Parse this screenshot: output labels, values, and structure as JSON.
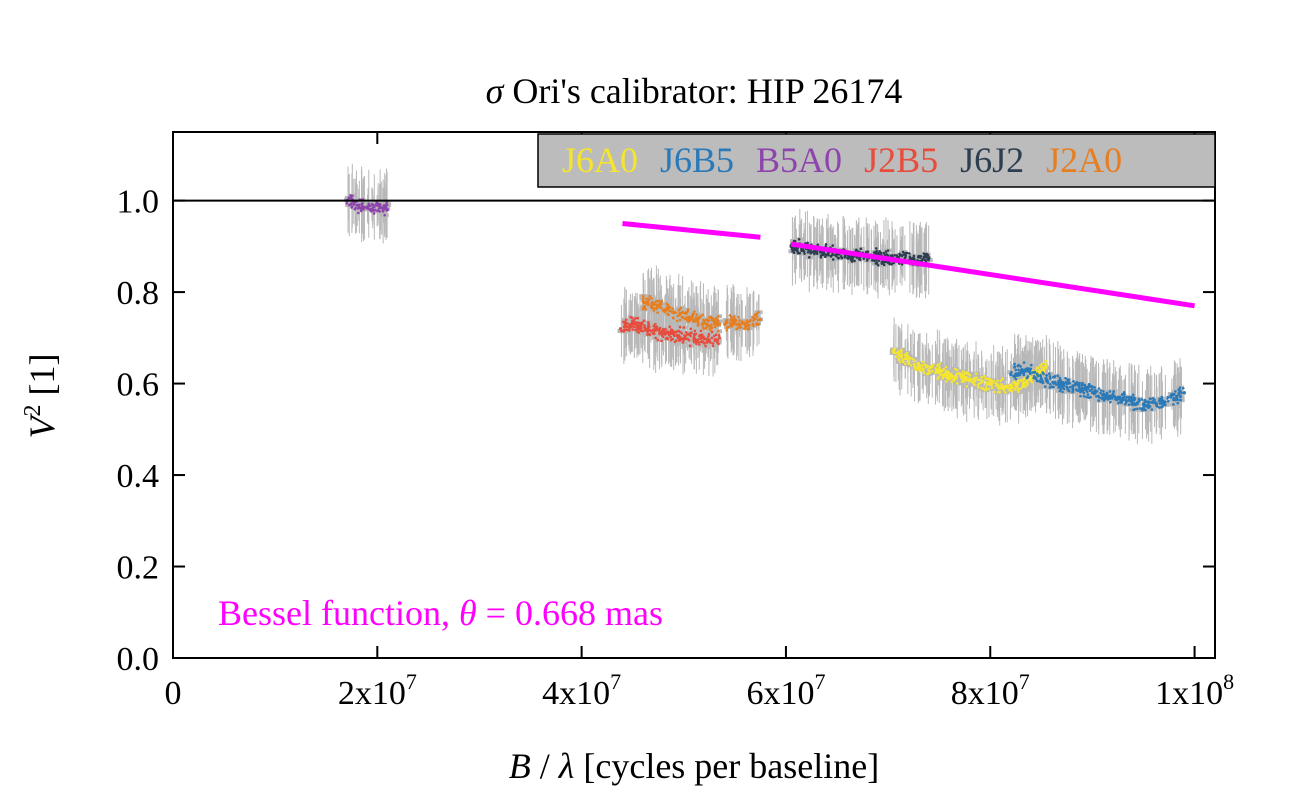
{
  "chart_data": {
    "type": "scatter",
    "title_prefix": "σ",
    "title_rest": " Ori's calibrator: HIP 26174",
    "xlabel_b": "B",
    "xlabel_slash": " / ",
    "xlabel_lambda": "λ",
    "xlabel_rest": " [cycles per baseline]",
    "ylabel_v": "V",
    "ylabel_sup": "2",
    "ylabel_rest": " [1]",
    "xlim": [
      0,
      102000000
    ],
    "ylim": [
      0,
      1.15
    ],
    "x_ticks": [
      {
        "value": 0,
        "base": "0",
        "exp": ""
      },
      {
        "value": 20000000,
        "base": "2x10",
        "exp": "7"
      },
      {
        "value": 40000000,
        "base": "4x10",
        "exp": "7"
      },
      {
        "value": 60000000,
        "base": "6x10",
        "exp": "7"
      },
      {
        "value": 80000000,
        "base": "8x10",
        "exp": "7"
      },
      {
        "value": 100000000,
        "base": "1x10",
        "exp": "8"
      }
    ],
    "y_ticks": [
      {
        "value": 0.0,
        "label": "0.0"
      },
      {
        "value": 0.2,
        "label": "0.2"
      },
      {
        "value": 0.4,
        "label": "0.4"
      },
      {
        "value": 0.6,
        "label": "0.6"
      },
      {
        "value": 0.8,
        "label": "0.8"
      },
      {
        "value": 1.0,
        "label": "1.0"
      }
    ],
    "reference_line_y": 1.0,
    "legend_position": "top-right",
    "error_bar_color": "#b8b8b8",
    "series": [
      {
        "name": "J6A0",
        "color": "#f5e52e",
        "segments": [
          {
            "x": [
              70500000,
              72000000,
              74000000,
              76000000,
              78000000,
              80000000,
              82000000,
              84000000,
              85500000
            ],
            "y": [
              0.67,
              0.65,
              0.63,
              0.62,
              0.61,
              0.6,
              0.59,
              0.61,
              0.64
            ]
          }
        ]
      },
      {
        "name": "J6B5",
        "color": "#2a7ab9",
        "segments": [
          {
            "x": [
              82000000,
              83500000,
              85000000,
              87000000,
              89000000,
              91000000,
              93000000,
              95000000,
              97000000,
              99000000
            ],
            "y": [
              0.62,
              0.63,
              0.61,
              0.6,
              0.59,
              0.575,
              0.565,
              0.555,
              0.56,
              0.58
            ]
          }
        ]
      },
      {
        "name": "B5A0",
        "color": "#8e44ad",
        "segments": [
          {
            "x": [
              17000000,
              18000000,
              19000000,
              20000000,
              21000000
            ],
            "y": [
              1.0,
              0.99,
              0.985,
              0.99,
              0.98
            ]
          }
        ]
      },
      {
        "name": "J2B5",
        "color": "#e74c3c",
        "segments": [
          {
            "x": [
              43800000,
              45000000,
              46500000,
              48000000,
              49500000,
              51000000,
              52500000,
              53500000
            ],
            "y": [
              0.72,
              0.73,
              0.72,
              0.71,
              0.705,
              0.7,
              0.695,
              0.7
            ]
          }
        ]
      },
      {
        "name": "J6J2",
        "color": "#2c3e50",
        "segments": [
          {
            "x": [
              60500000,
              62000000,
              63500000,
              65000000,
              66500000,
              68000000,
              69500000,
              71000000,
              72500000,
              74000000
            ],
            "y": [
              0.9,
              0.895,
              0.89,
              0.885,
              0.88,
              0.88,
              0.875,
              0.875,
              0.87,
              0.875
            ]
          }
        ]
      },
      {
        "name": "J2A0",
        "color": "#e67e22",
        "segments": [
          {
            "x": [
              46000000,
              47500000,
              49000000,
              50500000,
              52000000,
              53500000
            ],
            "y": [
              0.78,
              0.77,
              0.755,
              0.745,
              0.735,
              0.73
            ]
          },
          {
            "x": [
              54000000,
              55000000,
              56000000,
              57500000
            ],
            "y": [
              0.73,
              0.735,
              0.73,
              0.74
            ]
          }
        ]
      }
    ],
    "model_curve": {
      "color": "#ff00ff",
      "segments": [
        {
          "x": [
            44000000,
            57500000
          ],
          "y": [
            0.95,
            0.92
          ]
        },
        {
          "x": [
            60500000,
            100000000
          ],
          "y": [
            0.905,
            0.77
          ]
        }
      ]
    },
    "annotation": {
      "text_prefix": "Bessel function, ",
      "theta": "θ",
      "text_suffix": " = 0.668 mas",
      "color": "#ff00ff"
    }
  }
}
